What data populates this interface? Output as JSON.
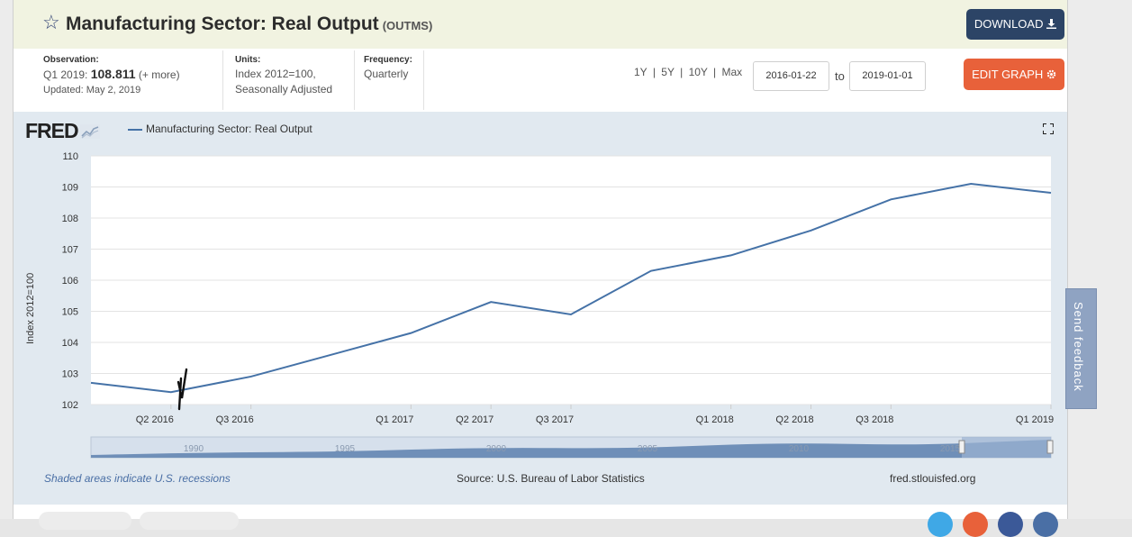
{
  "header": {
    "title": "Manufacturing Sector: Real Output",
    "series_id": "(OUTMS)",
    "download_label": "DOWNLOAD"
  },
  "meta": {
    "observation_label": "Observation:",
    "observation_period": "Q1 2019:",
    "observation_value": "108.811",
    "observation_more": "(+ more)",
    "updated": "Updated: May 2, 2019",
    "units_label": "Units:",
    "units_line1": "Index 2012=100,",
    "units_line2": "Seasonally Adjusted",
    "frequency_label": "Frequency:",
    "frequency_value": "Quarterly"
  },
  "controls": {
    "range_1y": "1Y",
    "range_5y": "5Y",
    "range_10y": "10Y",
    "range_max": "Max",
    "separator": "|",
    "date_start": "2016-01-22",
    "date_to": "to",
    "date_end": "2019-01-01",
    "edit_label": "EDIT GRAPH"
  },
  "chart_meta": {
    "logo": "FRED",
    "legend": "Manufacturing Sector: Real Output"
  },
  "footer": {
    "recessions": "Shaded areas indicate U.S. recessions",
    "source": "Source: U.S. Bureau of Labor Statistics",
    "site": "fred.stlouisfed.org"
  },
  "feedback": "Send feedback",
  "colors": {
    "series": "#4572a7",
    "edit": "#e8613a",
    "download": "#2c4466"
  },
  "chart_data": {
    "type": "line",
    "title": "",
    "xlabel": "",
    "ylabel": "Index 2012=100",
    "ylim": [
      102,
      110
    ],
    "yticks": [
      102,
      103,
      104,
      105,
      106,
      107,
      108,
      109,
      110
    ],
    "x": [
      "Q1 2016",
      "Q2 2016",
      "Q3 2016",
      "Q4 2016",
      "Q1 2017",
      "Q2 2017",
      "Q3 2017",
      "Q4 2017",
      "Q1 2018",
      "Q2 2018",
      "Q3 2018",
      "Q4 2018",
      "Q1 2019"
    ],
    "xtick_labels": [
      "Q2 2016",
      "Q3 2016",
      "Q1 2017",
      "Q2 2017",
      "Q3 2017",
      "Q1 2018",
      "Q2 2018",
      "Q3 2018",
      "Q1 2019"
    ],
    "series": [
      {
        "values": [
          102.7,
          102.4,
          102.9,
          103.6,
          104.3,
          105.3,
          104.9,
          106.3,
          106.8,
          107.6,
          108.6,
          109.1,
          108.81
        ]
      }
    ],
    "navigator_labels": [
      "1990",
      "1995",
      "2000",
      "2005",
      "2010",
      "2015"
    ],
    "grid": true,
    "legend": "top-left"
  }
}
